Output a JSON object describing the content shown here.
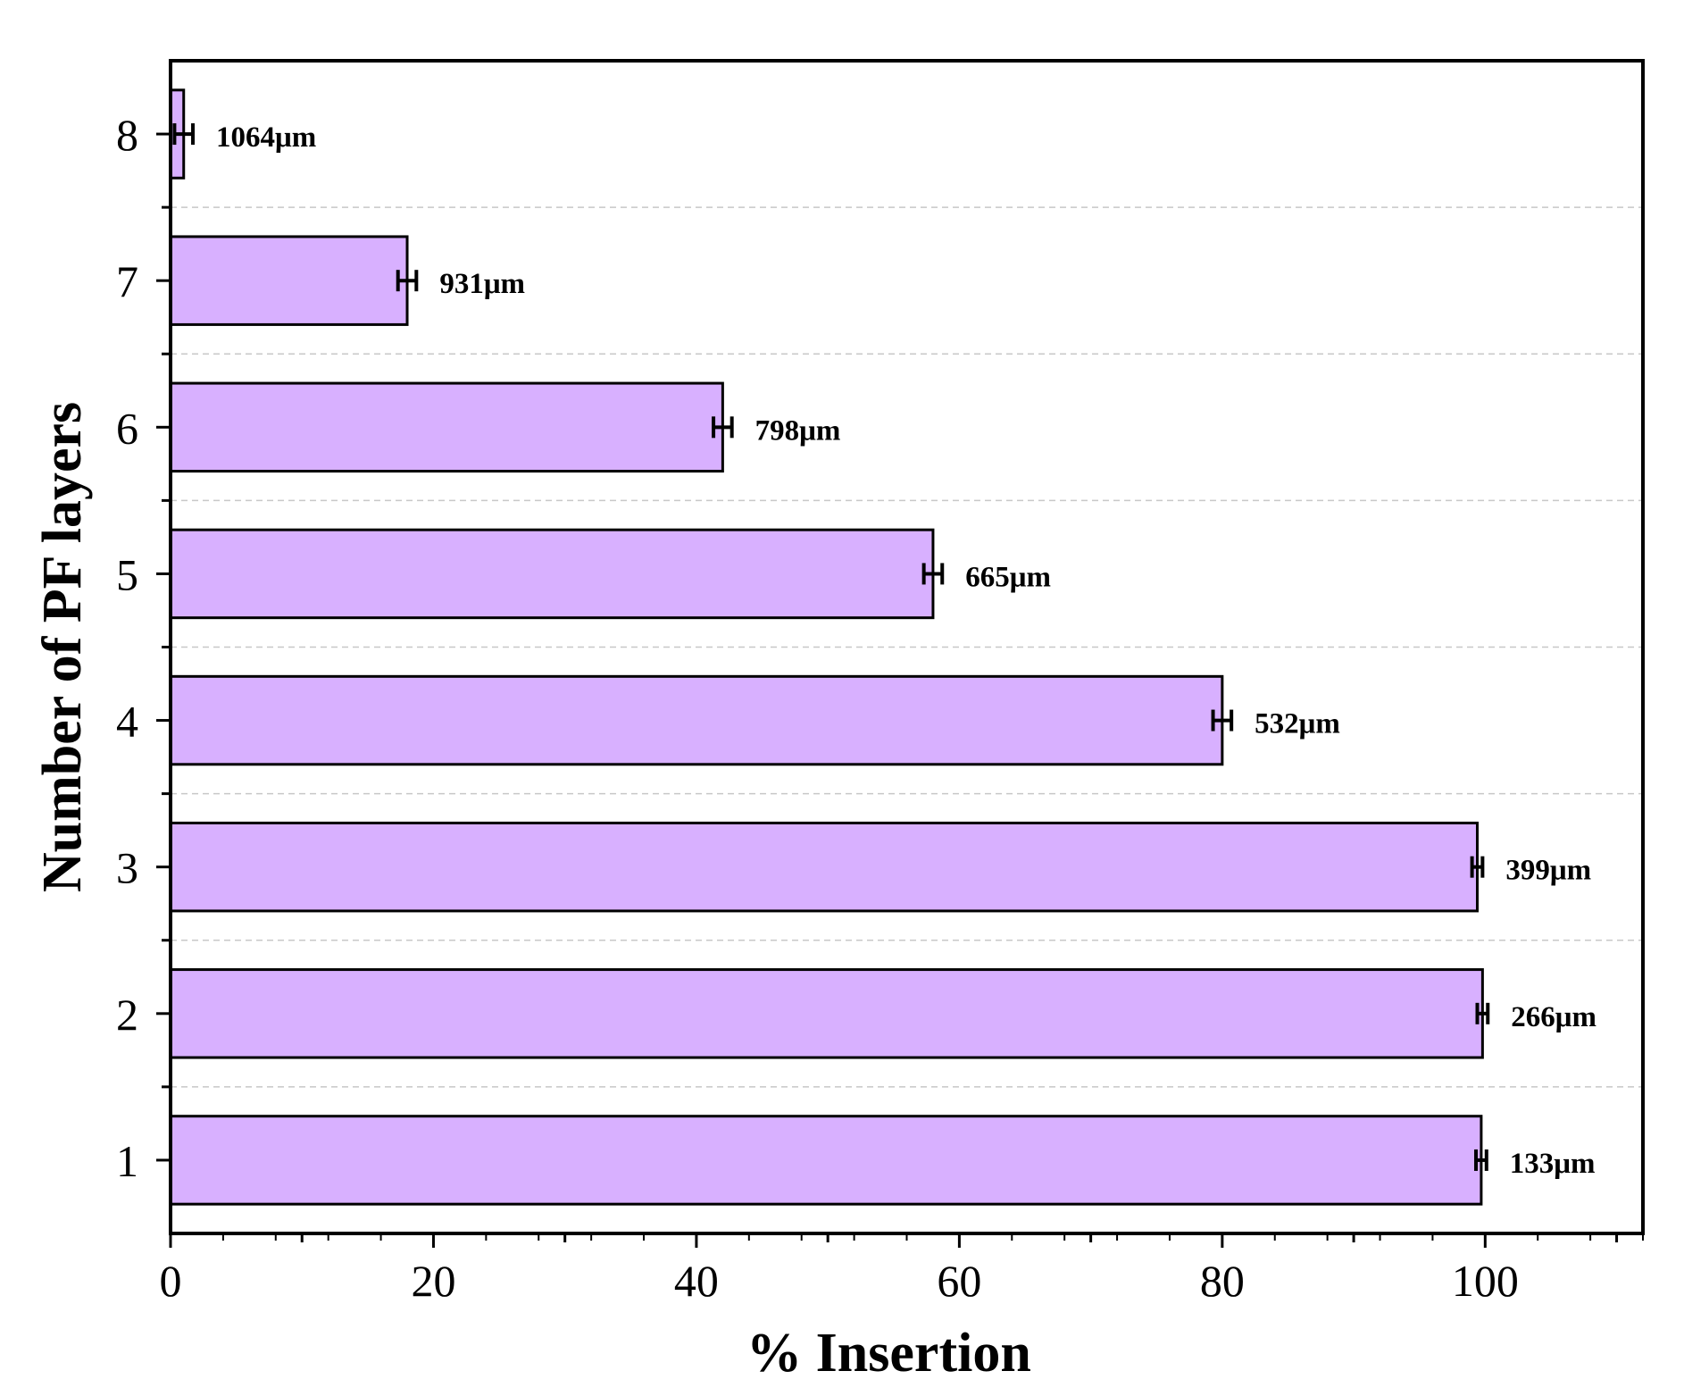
{
  "chart_data": {
    "type": "bar",
    "orientation": "horizontal",
    "xlabel": "% Insertion",
    "ylabel": "Number of PF layers",
    "xlim": [
      0,
      112
    ],
    "ylim": [
      0.5,
      8.5
    ],
    "x_ticks": [
      0,
      20,
      40,
      60,
      80,
      100
    ],
    "y_ticks": [
      1,
      2,
      3,
      4,
      5,
      6,
      7,
      8
    ],
    "categories": [
      "1",
      "2",
      "3",
      "4",
      "5",
      "6",
      "7",
      "8"
    ],
    "values": [
      99.7,
      99.8,
      99.4,
      80.0,
      58.0,
      42.0,
      18.0,
      1.0
    ],
    "errors": [
      0.4,
      0.4,
      0.4,
      0.7,
      0.7,
      0.7,
      0.7,
      0.7
    ],
    "labels": [
      "133μm",
      "266μm",
      "399μm",
      "532μm",
      "665μm",
      "798μm",
      "931μm",
      "1064μm"
    ],
    "bar_color": "#d8b0ff",
    "grid": "dashed horizontal between categories",
    "legend": "none"
  }
}
